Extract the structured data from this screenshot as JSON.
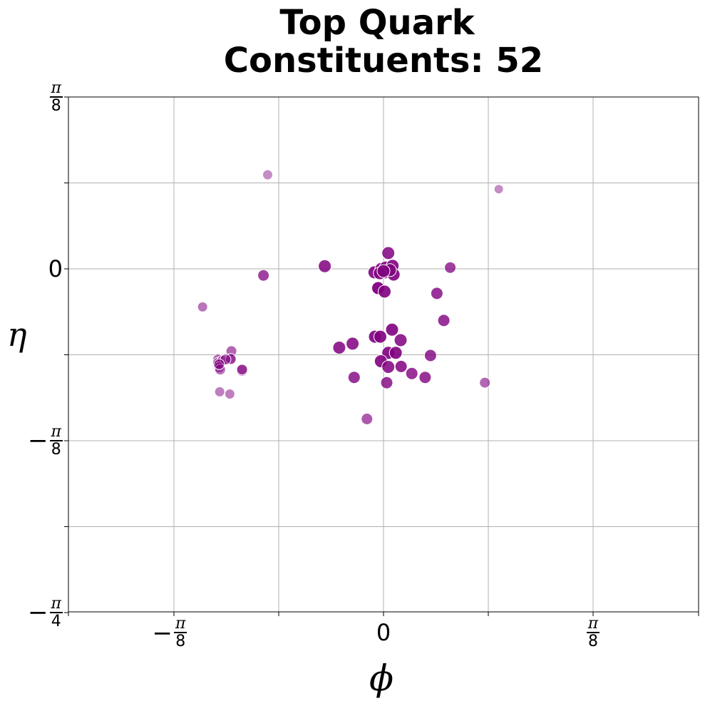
{
  "chart_data": {
    "type": "scatter",
    "title_line1": "Top Quark",
    "title_line2": "Constituents: 52",
    "xlabel": "ϕ",
    "ylabel": "η",
    "xlim": [
      -0.3,
      0.3
    ],
    "ylim": [
      -0.785,
      0.393
    ],
    "grid": true,
    "point_color": "#800080",
    "x_ticks": [
      {
        "value": -0.3927,
        "sign": "−",
        "num": "π",
        "den": "8"
      },
      {
        "value": 0,
        "text": "0"
      },
      {
        "value": 0.3927,
        "sign": "",
        "num": "π",
        "den": "8"
      }
    ],
    "y_ticks": [
      {
        "value": 0.3927,
        "sign": "",
        "num": "π",
        "den": "8"
      },
      {
        "value": 0,
        "text": "0"
      },
      {
        "value": -0.3927,
        "sign": "−",
        "num": "π",
        "den": "8"
      },
      {
        "value": -0.7854,
        "sign": "−",
        "num": "π",
        "den": "4"
      }
    ],
    "points": [
      {
        "x": -0.217,
        "y": 0.215,
        "size": 7,
        "alpha": 0.45
      },
      {
        "x": 0.216,
        "y": 0.182,
        "size": 6.5,
        "alpha": 0.45
      },
      {
        "x": -0.225,
        "y": -0.015,
        "size": 8,
        "alpha": 0.75
      },
      {
        "x": -0.11,
        "y": 0.006,
        "size": 9,
        "alpha": 0.85
      },
      {
        "x": 0.009,
        "y": 0.036,
        "size": 9,
        "alpha": 0.85
      },
      {
        "x": -0.017,
        "y": -0.008,
        "size": 9,
        "alpha": 0.9
      },
      {
        "x": -0.004,
        "y": 0.0,
        "size": 9,
        "alpha": 0.9
      },
      {
        "x": 0.004,
        "y": 0.003,
        "size": 9,
        "alpha": 0.9
      },
      {
        "x": 0.017,
        "y": 0.007,
        "size": 9,
        "alpha": 0.9
      },
      {
        "x": 0.002,
        "y": -0.008,
        "size": 9,
        "alpha": 0.9
      },
      {
        "x": 0.019,
        "y": -0.013,
        "size": 9,
        "alpha": 0.9
      },
      {
        "x": 0.125,
        "y": 0.003,
        "size": 8,
        "alpha": 0.75
      },
      {
        "x": -0.01,
        "y": -0.044,
        "size": 9,
        "alpha": 0.95
      },
      {
        "x": 0.002,
        "y": -0.052,
        "size": 9,
        "alpha": 0.9
      },
      {
        "x": 0.1,
        "y": -0.056,
        "size": 8.5,
        "alpha": 0.8
      },
      {
        "x": -0.339,
        "y": -0.087,
        "size": 7,
        "alpha": 0.55
      },
      {
        "x": 0.113,
        "y": -0.118,
        "size": 8.5,
        "alpha": 0.8
      },
      {
        "x": 0.016,
        "y": -0.139,
        "size": 9,
        "alpha": 0.9
      },
      {
        "x": -0.016,
        "y": -0.155,
        "size": 9,
        "alpha": 0.9
      },
      {
        "x": -0.006,
        "y": -0.155,
        "size": 9,
        "alpha": 0.9
      },
      {
        "x": 0.032,
        "y": -0.163,
        "size": 9,
        "alpha": 0.85
      },
      {
        "x": -0.058,
        "y": -0.171,
        "size": 9,
        "alpha": 0.85
      },
      {
        "x": -0.083,
        "y": -0.18,
        "size": 9,
        "alpha": 0.85
      },
      {
        "x": 0.009,
        "y": -0.192,
        "size": 9,
        "alpha": 0.9
      },
      {
        "x": 0.023,
        "y": -0.192,
        "size": 9,
        "alpha": 0.9
      },
      {
        "x": 0.088,
        "y": -0.198,
        "size": 8.5,
        "alpha": 0.8
      },
      {
        "x": -0.005,
        "y": -0.211,
        "size": 9,
        "alpha": 0.9
      },
      {
        "x": 0.009,
        "y": -0.224,
        "size": 9,
        "alpha": 0.85
      },
      {
        "x": 0.033,
        "y": -0.223,
        "size": 8.5,
        "alpha": 0.85
      },
      {
        "x": 0.053,
        "y": -0.239,
        "size": 8.5,
        "alpha": 0.8
      },
      {
        "x": 0.078,
        "y": -0.248,
        "size": 8.5,
        "alpha": 0.8
      },
      {
        "x": -0.055,
        "y": -0.248,
        "size": 8.5,
        "alpha": 0.8
      },
      {
        "x": 0.006,
        "y": -0.26,
        "size": 8.5,
        "alpha": 0.8
      },
      {
        "x": 0.19,
        "y": -0.26,
        "size": 7.5,
        "alpha": 0.6
      },
      {
        "x": -0.031,
        "y": -0.343,
        "size": 8,
        "alpha": 0.65
      },
      {
        "x": -0.285,
        "y": -0.188,
        "size": 7.5,
        "alpha": 0.6
      },
      {
        "x": -0.287,
        "y": -0.206,
        "size": 7.5,
        "alpha": 0.55
      },
      {
        "x": -0.31,
        "y": -0.207,
        "size": 7.5,
        "alpha": 0.55
      },
      {
        "x": -0.31,
        "y": -0.215,
        "size": 7.5,
        "alpha": 0.6
      },
      {
        "x": -0.302,
        "y": -0.21,
        "size": 7.5,
        "alpha": 0.6
      },
      {
        "x": -0.308,
        "y": -0.225,
        "size": 7.5,
        "alpha": 0.55
      },
      {
        "x": -0.306,
        "y": -0.23,
        "size": 7.5,
        "alpha": 0.55
      },
      {
        "x": -0.265,
        "y": -0.232,
        "size": 8,
        "alpha": 0.6
      },
      {
        "x": -0.265,
        "y": -0.23,
        "size": 7.5,
        "alpha": 0.55
      },
      {
        "x": -0.286,
        "y": -0.206,
        "size": 7.5,
        "alpha": 0.55
      },
      {
        "x": -0.296,
        "y": -0.207,
        "size": 7.5,
        "alpha": 0.55
      },
      {
        "x": -0.288,
        "y": -0.286,
        "size": 7,
        "alpha": 0.5
      },
      {
        "x": -0.307,
        "y": -0.281,
        "size": 7,
        "alpha": 0.5
      },
      {
        "x": -0.308,
        "y": -0.218,
        "size": 7.5,
        "alpha": 0.55
      },
      {
        "x": 0.012,
        "y": -0.003,
        "size": 9,
        "alpha": 0.9
      },
      {
        "x": -0.007,
        "y": -0.01,
        "size": 9,
        "alpha": 0.9
      },
      {
        "x": 0.0,
        "y": -0.005,
        "size": 9,
        "alpha": 0.9
      }
    ]
  }
}
